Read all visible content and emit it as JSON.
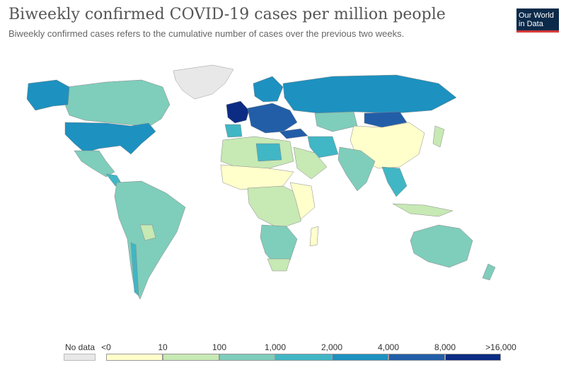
{
  "header": {
    "title": "Biweekly confirmed COVID-19 cases per million people",
    "subtitle": "Biweekly confirmed cases refers to the cumulative number of cases over the previous two weeks."
  },
  "logo": {
    "line1": "Our World",
    "line2": "in Data"
  },
  "legend": {
    "no_data_label": "No data",
    "no_data_color": "#e8e8e8",
    "bins": [
      {
        "label": "<0",
        "color": "#ffffcc"
      },
      {
        "label": "10",
        "color": "#c7e9b4"
      },
      {
        "label": "100",
        "color": "#7fcdbb"
      },
      {
        "label": "1,000",
        "color": "#41b6c4"
      },
      {
        "label": "2,000",
        "color": "#1d91c0"
      },
      {
        "label": "4,000",
        "color": "#225ea8"
      },
      {
        "label": "8,000",
        "color": "#0c2c84"
      },
      {
        "label": ">16,000",
        "color": ""
      }
    ]
  }
}
